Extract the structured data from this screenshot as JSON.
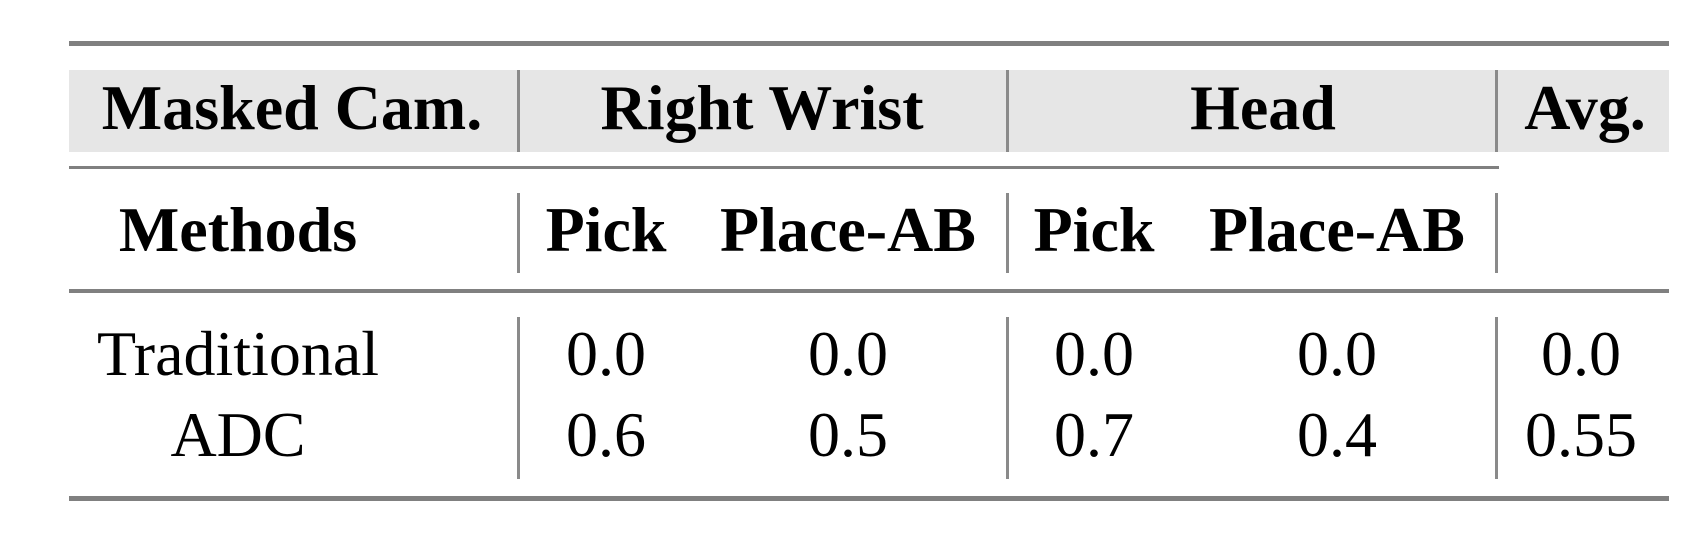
{
  "table": {
    "header_row1": {
      "masked_cam": "Masked Cam.",
      "group_right_wrist": "Right Wrist",
      "group_head": "Head",
      "avg": "Avg."
    },
    "header_row2": {
      "methods": "Methods",
      "columns": [
        "Pick",
        "Place-AB",
        "Pick",
        "Place-AB"
      ]
    },
    "rows": [
      {
        "method": "Traditional",
        "values": [
          "0.0",
          "0.0",
          "0.0",
          "0.0"
        ],
        "avg": "0.0"
      },
      {
        "method": "ADC",
        "values": [
          "0.6",
          "0.5",
          "0.7",
          "0.4"
        ],
        "avg": "0.55"
      }
    ],
    "header_background": "#e6e6e6",
    "rule_color": "#808080"
  }
}
